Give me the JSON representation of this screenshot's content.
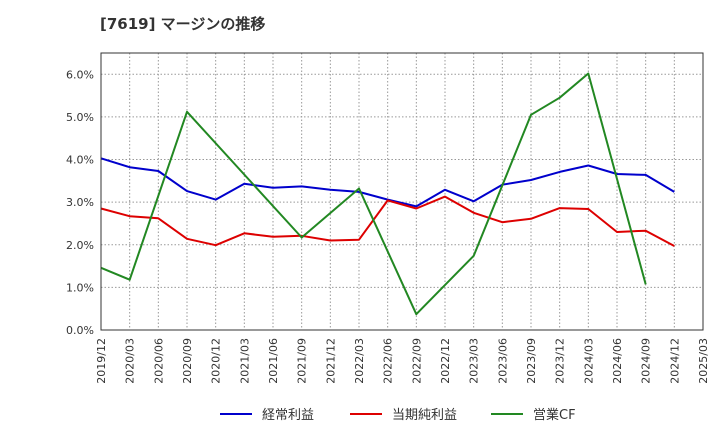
{
  "chart_data": {
    "type": "line",
    "title": "[7619]  マージンの推移",
    "xlabel": "",
    "ylabel": "",
    "x": [
      "2019/12",
      "2020/03",
      "2020/06",
      "2020/09",
      "2020/12",
      "2021/03",
      "2021/06",
      "2021/09",
      "2021/12",
      "2022/03",
      "2022/06",
      "2022/09",
      "2022/12",
      "2023/03",
      "2023/06",
      "2023/09",
      "2023/12",
      "2024/03",
      "2024/06",
      "2024/09",
      "2024/12",
      "2025/03"
    ],
    "yticks": [
      "0.0%",
      "1.0%",
      "2.0%",
      "3.0%",
      "4.0%",
      "5.0%",
      "6.0%"
    ],
    "ylim": [
      0,
      6.5
    ],
    "grid": true,
    "legend_position": "bottom",
    "series": [
      {
        "name": "経常利益",
        "color": "#0000cc",
        "values": [
          4.03,
          3.82,
          3.73,
          3.26,
          3.06,
          3.43,
          3.34,
          3.37,
          3.29,
          3.24,
          3.06,
          2.9,
          3.29,
          3.02,
          3.41,
          3.52,
          3.71,
          3.86,
          3.66,
          3.64,
          3.24,
          null
        ]
      },
      {
        "name": "当期純利益",
        "color": "#dd0000",
        "values": [
          2.85,
          2.67,
          2.62,
          2.14,
          1.99,
          2.27,
          2.19,
          2.21,
          2.1,
          2.12,
          3.04,
          2.85,
          3.13,
          2.75,
          2.53,
          2.61,
          2.86,
          2.84,
          2.3,
          2.33,
          1.97,
          null
        ]
      },
      {
        "name": "営業CF",
        "color": "#228822",
        "values": [
          1.46,
          1.18,
          null,
          5.12,
          null,
          null,
          null,
          2.17,
          null,
          3.32,
          null,
          0.37,
          null,
          1.74,
          null,
          5.05,
          5.45,
          6.02,
          null,
          1.07,
          null,
          null
        ]
      }
    ]
  }
}
